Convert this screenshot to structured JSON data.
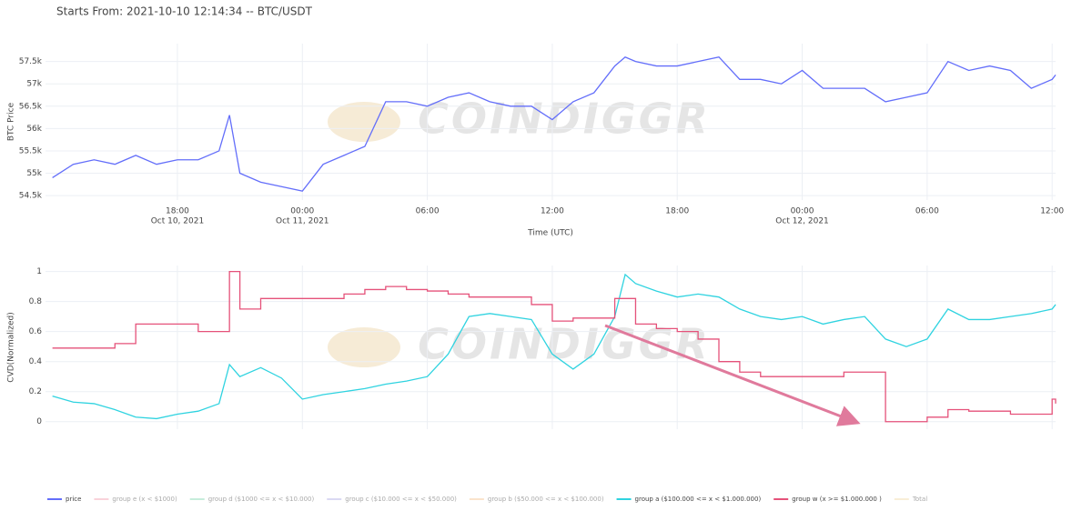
{
  "title": "Starts From: 2021-10-10 12:14:34 -- BTC/USDT",
  "chart_data": [
    {
      "type": "line",
      "watermark": "COINDIGGR",
      "ylabel": "BTC Price",
      "xlabel": "Time (UTC)",
      "x": [
        "2021-10-10 12:00",
        "2021-10-10 13:00",
        "2021-10-10 14:00",
        "2021-10-10 15:00",
        "2021-10-10 16:00",
        "2021-10-10 17:00",
        "2021-10-10 18:00",
        "2021-10-10 19:00",
        "2021-10-10 20:00",
        "2021-10-10 20:30",
        "2021-10-10 21:00",
        "2021-10-10 22:00",
        "2021-10-10 23:00",
        "2021-10-11 00:00",
        "2021-10-11 01:00",
        "2021-10-11 02:00",
        "2021-10-11 03:00",
        "2021-10-11 04:00",
        "2021-10-11 05:00",
        "2021-10-11 06:00",
        "2021-10-11 07:00",
        "2021-10-11 08:00",
        "2021-10-11 09:00",
        "2021-10-11 10:00",
        "2021-10-11 11:00",
        "2021-10-11 12:00",
        "2021-10-11 13:00",
        "2021-10-11 14:00",
        "2021-10-11 15:00",
        "2021-10-11 15:30",
        "2021-10-11 16:00",
        "2021-10-11 17:00",
        "2021-10-11 18:00",
        "2021-10-11 19:00",
        "2021-10-11 20:00",
        "2021-10-11 21:00",
        "2021-10-11 22:00",
        "2021-10-11 23:00",
        "2021-10-12 00:00",
        "2021-10-12 01:00",
        "2021-10-12 02:00",
        "2021-10-12 03:00",
        "2021-10-12 04:00",
        "2021-10-12 05:00",
        "2021-10-12 06:00",
        "2021-10-12 07:00",
        "2021-10-12 08:00",
        "2021-10-12 09:00",
        "2021-10-12 10:00",
        "2021-10-12 11:00",
        "2021-10-12 12:00",
        "2021-10-12 12:10"
      ],
      "series": [
        {
          "name": "price",
          "color": "#636efa",
          "values": [
            54900,
            55200,
            55300,
            55200,
            55400,
            55200,
            55300,
            55300,
            55500,
            56300,
            55000,
            54800,
            54700,
            54600,
            55200,
            55400,
            55600,
            56600,
            56600,
            56500,
            56700,
            56800,
            56600,
            56500,
            56500,
            56200,
            56600,
            56800,
            57400,
            57600,
            57500,
            57400,
            57400,
            57500,
            57600,
            57100,
            57100,
            57000,
            57300,
            56900,
            56900,
            56900,
            56600,
            56700,
            56800,
            57500,
            57300,
            57400,
            57300,
            56900,
            57100,
            57200
          ]
        }
      ],
      "xlim": [
        "2021-10-10 11:40",
        "2021-10-12 12:10"
      ],
      "xticks": [
        {
          "value": "2021-10-10 18:00",
          "label": "18:00",
          "date": "Oct 10, 2021"
        },
        {
          "value": "2021-10-11 00:00",
          "label": "00:00",
          "date": "Oct 11, 2021"
        },
        {
          "value": "2021-10-11 06:00",
          "label": "06:00"
        },
        {
          "value": "2021-10-11 12:00",
          "label": "12:00"
        },
        {
          "value": "2021-10-11 18:00",
          "label": "18:00"
        },
        {
          "value": "2021-10-12 00:00",
          "label": "00:00",
          "date": "Oct 12, 2021"
        },
        {
          "value": "2021-10-12 06:00",
          "label": "06:00"
        },
        {
          "value": "2021-10-12 12:00",
          "label": "12:00"
        }
      ],
      "ylim": [
        54400,
        57900
      ],
      "yticks": [
        {
          "value": 54500,
          "label": "54.5k"
        },
        {
          "value": 55000,
          "label": "55k"
        },
        {
          "value": 55500,
          "label": "55.5k"
        },
        {
          "value": 56000,
          "label": "56k"
        },
        {
          "value": 56500,
          "label": "56.5k"
        },
        {
          "value": 57000,
          "label": "57k"
        },
        {
          "value": 57500,
          "label": "57.5k"
        }
      ],
      "grid": true
    },
    {
      "type": "line",
      "watermark": "COINDIGGR",
      "ylabel": "CVD(Normalized)",
      "x": [
        "2021-10-10 12:00",
        "2021-10-10 13:00",
        "2021-10-10 14:00",
        "2021-10-10 15:00",
        "2021-10-10 16:00",
        "2021-10-10 17:00",
        "2021-10-10 18:00",
        "2021-10-10 19:00",
        "2021-10-10 20:00",
        "2021-10-10 20:30",
        "2021-10-10 21:00",
        "2021-10-10 22:00",
        "2021-10-10 23:00",
        "2021-10-11 00:00",
        "2021-10-11 01:00",
        "2021-10-11 02:00",
        "2021-10-11 03:00",
        "2021-10-11 04:00",
        "2021-10-11 05:00",
        "2021-10-11 06:00",
        "2021-10-11 07:00",
        "2021-10-11 08:00",
        "2021-10-11 09:00",
        "2021-10-11 10:00",
        "2021-10-11 11:00",
        "2021-10-11 12:00",
        "2021-10-11 13:00",
        "2021-10-11 14:00",
        "2021-10-11 15:00",
        "2021-10-11 15:30",
        "2021-10-11 16:00",
        "2021-10-11 17:00",
        "2021-10-11 18:00",
        "2021-10-11 19:00",
        "2021-10-11 20:00",
        "2021-10-11 21:00",
        "2021-10-11 22:00",
        "2021-10-11 23:00",
        "2021-10-12 00:00",
        "2021-10-12 01:00",
        "2021-10-12 02:00",
        "2021-10-12 03:00",
        "2021-10-12 04:00",
        "2021-10-12 05:00",
        "2021-10-12 06:00",
        "2021-10-12 07:00",
        "2021-10-12 08:00",
        "2021-10-12 09:00",
        "2021-10-12 10:00",
        "2021-10-12 11:00",
        "2021-10-12 12:00",
        "2021-10-12 12:10"
      ],
      "series": [
        {
          "name": "group e (x < $1000)",
          "color": "#f4a6b7",
          "visible": false
        },
        {
          "name": "group d ($1000 <= x < $10.000)",
          "color": "#8fdcb8",
          "visible": false
        },
        {
          "name": "group c ($10.000 <= x < $50.000)",
          "color": "#b7b4e8",
          "visible": false
        },
        {
          "name": "group b ($50.000 <= x < $100.000)",
          "color": "#f6c99a",
          "visible": false
        },
        {
          "name": "group a ($100.000 <= x < $1.000.000)",
          "color": "#2fd3e0",
          "values": [
            0.17,
            0.13,
            0.12,
            0.08,
            0.03,
            0.02,
            0.05,
            0.07,
            0.12,
            0.38,
            0.3,
            0.36,
            0.29,
            0.15,
            0.18,
            0.2,
            0.22,
            0.25,
            0.27,
            0.3,
            0.45,
            0.7,
            0.72,
            0.7,
            0.68,
            0.45,
            0.35,
            0.45,
            0.7,
            0.98,
            0.92,
            0.87,
            0.83,
            0.85,
            0.83,
            0.75,
            0.7,
            0.68,
            0.7,
            0.65,
            0.68,
            0.7,
            0.55,
            0.5,
            0.55,
            0.75,
            0.68,
            0.68,
            0.7,
            0.72,
            0.75,
            0.78
          ]
        },
        {
          "name": "group w (x >= $1.000.000 )",
          "color": "#e5527a",
          "shape": "hv",
          "values": [
            0.49,
            0.49,
            0.49,
            0.52,
            0.65,
            0.65,
            0.65,
            0.6,
            0.6,
            1.0,
            0.75,
            0.82,
            0.82,
            0.82,
            0.82,
            0.85,
            0.88,
            0.9,
            0.88,
            0.87,
            0.85,
            0.83,
            0.83,
            0.83,
            0.78,
            0.67,
            0.69,
            0.69,
            0.82,
            0.82,
            0.65,
            0.62,
            0.6,
            0.55,
            0.4,
            0.33,
            0.3,
            0.3,
            0.3,
            0.3,
            0.33,
            0.33,
            0,
            0,
            0.03,
            0.08,
            0.07,
            0.07,
            0.05,
            0.05,
            0.15,
            0.12
          ]
        },
        {
          "name": "Total",
          "color": "#f3dfb0",
          "visible": false
        }
      ],
      "xlim": [
        "2021-10-10 11:40",
        "2021-10-12 12:10"
      ],
      "xticks": [
        "2021-10-10 18:00",
        "2021-10-11 00:00",
        "2021-10-11 06:00",
        "2021-10-11 12:00",
        "2021-10-11 18:00",
        "2021-10-12 00:00",
        "2021-10-12 06:00",
        "2021-10-12 12:00"
      ],
      "ylim": [
        -0.05,
        1.04
      ],
      "yticks": [
        0,
        0.2,
        0.4,
        0.6,
        0.8,
        1
      ],
      "grid": true
    }
  ]
}
